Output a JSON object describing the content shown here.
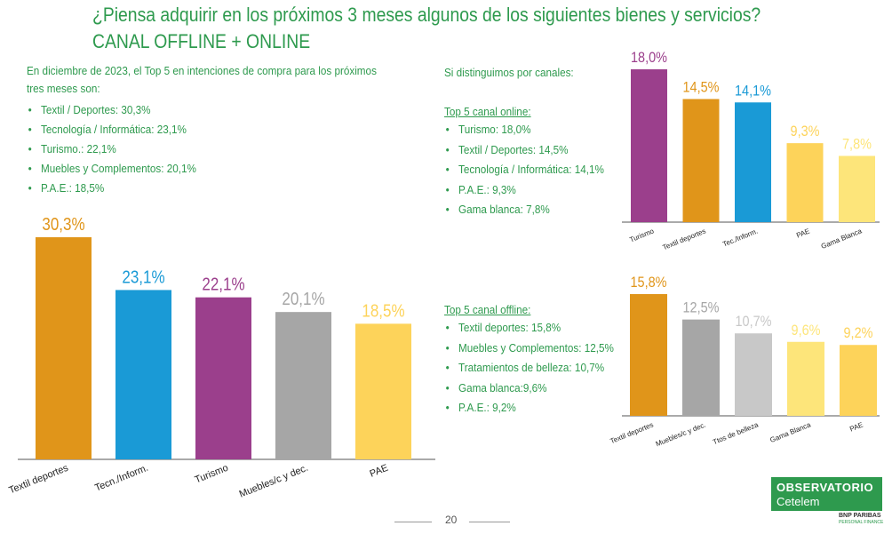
{
  "header": {
    "title": "¿Piensa adquirir en los próximos 3 meses algunos de los siguientes bienes y servicios?",
    "subtitle": "CANAL OFFLINE + ONLINE"
  },
  "intro": {
    "text": [
      "En diciembre de 2023, el Top 5 en intenciones de compra para los próximos",
      "tres meses son:"
    ],
    "bullets": [
      "Textil / Deportes: 30,3%",
      "Tecnología / Informática: 23,1%",
      "Turismo.: 22,1%",
      "Muebles y Complementos: 20,1%",
      "P.A.E.: 18,5%"
    ]
  },
  "channels": {
    "text": "Si distinguimos por canales:",
    "online": {
      "heading": "Top 5 canal online:",
      "bullets": [
        "Turismo: 18,0%",
        "Textil / Deportes: 14,5%",
        "Tecnología / Informática: 14,1%",
        "P.A.E.: 9,3%",
        "Gama blanca: 7,8%"
      ]
    },
    "offline": {
      "heading": "Top 5 canal offline:",
      "bullets": [
        "Textil deportes: 15,8%",
        "Muebles y Complementos: 12,5%",
        "Tratamientos de belleza: 10,7%",
        "Gama blanca:9,6%",
        "P.A.E.: 9,2%"
      ]
    }
  },
  "chart_data": [
    {
      "type": "bar",
      "categories": [
        "Textil deportes",
        "Tecn./Inform.",
        "Turismo",
        "Muebles/c y dec.",
        "PAE"
      ],
      "values": [
        30.3,
        23.1,
        22.1,
        20.1,
        18.5
      ],
      "value_labels": [
        "30,3%",
        "23,1%",
        "22,1%",
        "20,1%",
        "18,5%"
      ],
      "colors": [
        "#e0951a",
        "#1a9ad6",
        "#9b3f8c",
        "#a6a6a6",
        "#fdd35a"
      ]
    },
    {
      "type": "bar",
      "categories": [
        "Turismo",
        "Textil deportes",
        "Tec./Inform.",
        "PAE",
        "Gama Blanca"
      ],
      "values": [
        18.0,
        14.5,
        14.1,
        9.3,
        7.8
      ],
      "value_labels": [
        "18,0%",
        "14,5%",
        "14,1%",
        "9,3%",
        "7,8%"
      ],
      "colors": [
        "#9b3f8c",
        "#e0951a",
        "#1a9ad6",
        "#fdd35a",
        "#fde57a"
      ]
    },
    {
      "type": "bar",
      "categories": [
        "Textil deportes",
        "Muebles/c y dec.",
        "Ttos de belleza",
        "Gama Blanca",
        "PAE"
      ],
      "values": [
        15.8,
        12.5,
        10.7,
        9.6,
        9.2
      ],
      "value_labels": [
        "15,8%",
        "12,5%",
        "10,7%",
        "9,6%",
        "9,2%"
      ],
      "colors": [
        "#e0951a",
        "#a6a6a6",
        "#c8c8c8",
        "#fde57a",
        "#fdd35a"
      ]
    }
  ],
  "footer": {
    "page": "20"
  },
  "logo": {
    "title": "OBSERVATORIO",
    "subtitle": "Cetelem",
    "bank": "BNP PARIBAS",
    "bank_sub": "PERSONAL FINANCE"
  }
}
